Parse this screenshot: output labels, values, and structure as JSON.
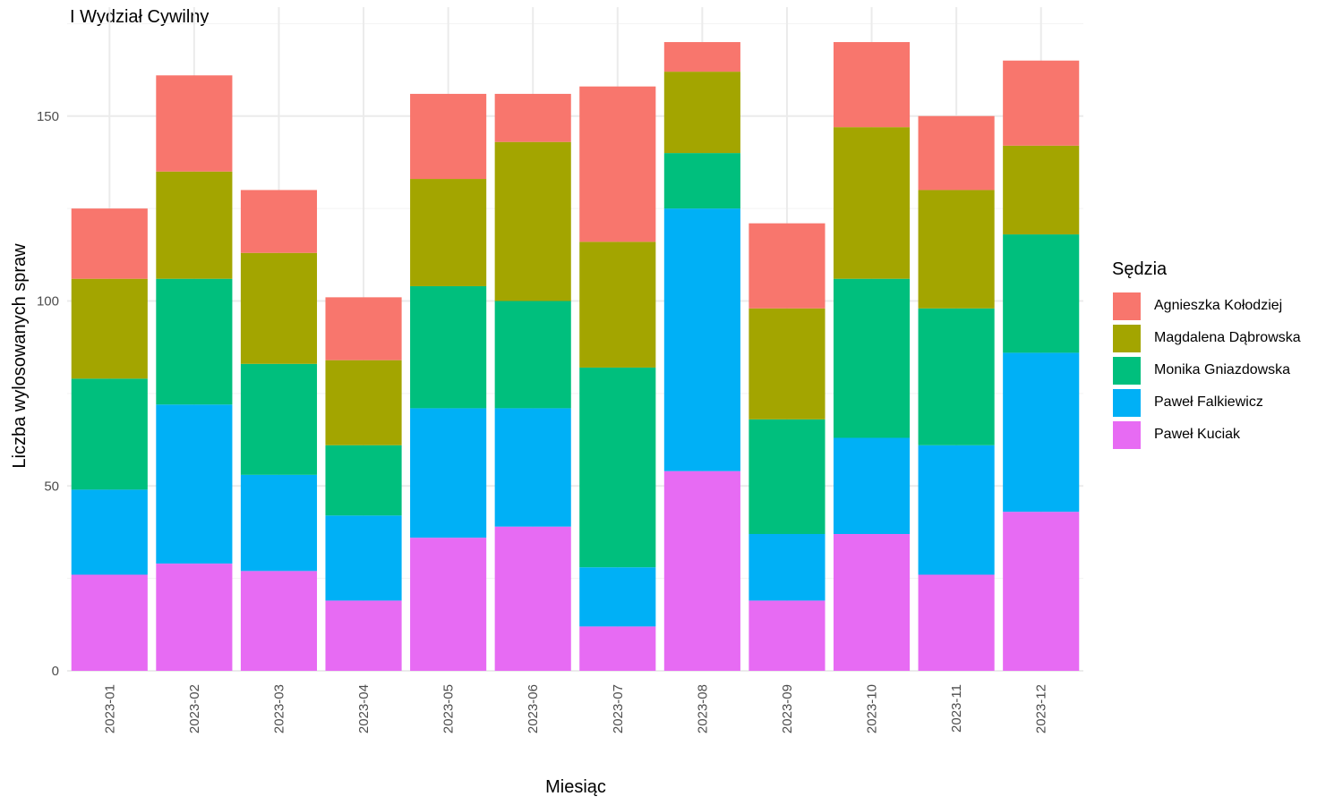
{
  "chart_data": {
    "type": "bar",
    "stacked": true,
    "title": "I Wydział Cywilny",
    "xlabel": "Miesiąc",
    "ylabel": "Liczba wylosowanych spraw",
    "ylim": [
      0,
      175
    ],
    "yticks": [
      0,
      50,
      100,
      150
    ],
    "grid": true,
    "legend_title": "Sędzia",
    "legend_position": "right",
    "categories": [
      "2023-01",
      "2023-02",
      "2023-03",
      "2023-04",
      "2023-05",
      "2023-06",
      "2023-07",
      "2023-08",
      "2023-09",
      "2023-10",
      "2023-11",
      "2023-12"
    ],
    "series": [
      {
        "name": "Paweł Kuciak",
        "color": "#E76BF3",
        "values": [
          26,
          29,
          27,
          19,
          36,
          39,
          12,
          54,
          19,
          37,
          26,
          43
        ]
      },
      {
        "name": "Paweł Falkiewicz",
        "color": "#00B0F6",
        "values": [
          23,
          43,
          26,
          23,
          35,
          32,
          16,
          71,
          18,
          26,
          35,
          43
        ]
      },
      {
        "name": "Monika Gniazdowska",
        "color": "#00BF7D",
        "values": [
          30,
          34,
          30,
          19,
          33,
          29,
          54,
          15,
          31,
          43,
          37,
          32
        ]
      },
      {
        "name": "Magdalena Dąbrowska",
        "color": "#A3A500",
        "values": [
          27,
          29,
          30,
          23,
          29,
          43,
          34,
          22,
          30,
          41,
          32,
          24
        ]
      },
      {
        "name": "Agnieszka Kołodziej",
        "color": "#F8766D",
        "values": [
          19,
          26,
          17,
          17,
          23,
          13,
          42,
          8,
          23,
          23,
          20,
          23
        ]
      }
    ],
    "legend_order": [
      "Agnieszka Kołodziej",
      "Magdalena Dąbrowska",
      "Monika Gniazdowska",
      "Paweł Falkiewicz",
      "Paweł Kuciak"
    ]
  }
}
